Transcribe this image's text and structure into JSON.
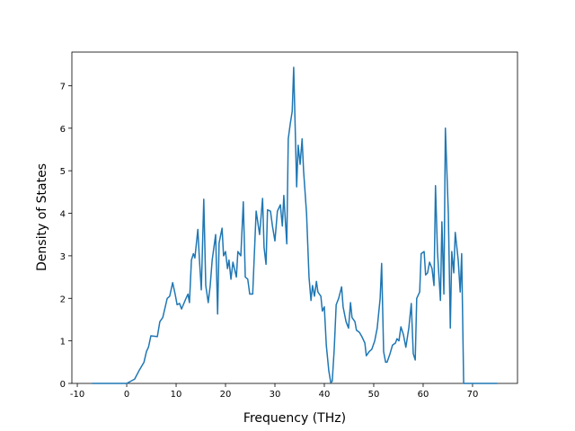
{
  "chart_data": {
    "type": "line",
    "x_label": "Frequency (THz)",
    "y_label": "Density of States",
    "color": "#1f77b4",
    "x": [
      -7,
      0,
      1.6,
      2.5,
      3.5,
      4,
      4.4,
      4.9,
      6.2,
      6.7,
      7.3,
      8.2,
      8.7,
      9.3,
      9.8,
      10.2,
      10.7,
      11.1,
      12,
      12.4,
      12.7,
      13.1,
      13.5,
      13.8,
      14.4,
      14.7,
      15.1,
      15.6,
      16,
      16.5,
      16.9,
      17.3,
      18,
      18.4,
      18.7,
      19.3,
      19.6,
      20,
      20.4,
      20.7,
      21.1,
      21.5,
      22.2,
      22.5,
      23.1,
      23.6,
      24,
      24.5,
      24.9,
      25.5,
      26.2,
      26.9,
      27.5,
      27.8,
      28.2,
      28.5,
      29.1,
      29.5,
      30,
      30.5,
      31.1,
      31.5,
      31.8,
      32.4,
      32.7,
      33.1,
      33.5,
      33.8,
      34.4,
      34.7,
      35.1,
      35.5,
      35.8,
      36.4,
      36.9,
      37.3,
      37.6,
      38,
      38.4,
      38.7,
      39.3,
      39.6,
      40,
      40.4,
      40.9,
      41.3,
      41.6,
      42,
      42.4,
      42.9,
      43.5,
      43.8,
      44.4,
      44.9,
      45.3,
      45.6,
      46.2,
      46.5,
      47.1,
      47.6,
      48.2,
      48.5,
      49.1,
      49.6,
      50.2,
      50.7,
      51.3,
      51.6,
      52,
      52.4,
      52.7,
      53.3,
      53.8,
      54.4,
      54.7,
      55.1,
      55.5,
      56,
      56.5,
      57.1,
      57.6,
      58,
      58.4,
      58.7,
      59.3,
      59.6,
      60.2,
      60.5,
      60.9,
      61.3,
      61.8,
      62.2,
      62.5,
      62.9,
      63.5,
      63.8,
      64.2,
      64.5,
      65.1,
      65.5,
      65.8,
      66.2,
      66.5,
      67.1,
      67.5,
      67.8,
      68.2,
      75
    ],
    "values": [
      0,
      0,
      0.1,
      0.3,
      0.5,
      0.75,
      0.85,
      1.12,
      1.1,
      1.45,
      1.55,
      2.0,
      2.05,
      2.37,
      2.1,
      1.85,
      1.88,
      1.75,
      2.0,
      2.1,
      1.9,
      2.9,
      3.05,
      2.95,
      3.62,
      2.95,
      2.2,
      4.33,
      2.3,
      1.9,
      2.3,
      2.9,
      3.5,
      1.63,
      3.3,
      3.65,
      3.0,
      3.1,
      2.7,
      2.9,
      2.45,
      2.85,
      2.5,
      3.1,
      3.0,
      4.27,
      2.5,
      2.45,
      2.1,
      2.1,
      4.05,
      3.5,
      4.35,
      3.2,
      2.8,
      4.08,
      4.05,
      3.7,
      3.35,
      4.05,
      4.2,
      3.7,
      4.42,
      3.28,
      5.75,
      6.1,
      6.4,
      7.43,
      4.62,
      5.6,
      5.15,
      5.75,
      5.0,
      4.0,
      2.5,
      1.95,
      2.3,
      2.05,
      2.4,
      2.15,
      2.05,
      1.7,
      1.8,
      0.9,
      0.3,
      0.02,
      0.05,
      0.8,
      1.85,
      2.0,
      2.27,
      1.8,
      1.45,
      1.3,
      1.9,
      1.55,
      1.45,
      1.25,
      1.2,
      1.1,
      0.95,
      0.65,
      0.75,
      0.8,
      1.0,
      1.3,
      2.0,
      2.82,
      0.75,
      0.5,
      0.5,
      0.7,
      0.9,
      0.95,
      1.05,
      1.0,
      1.33,
      1.15,
      0.85,
      1.3,
      1.88,
      0.7,
      0.55,
      2.0,
      2.15,
      3.05,
      3.1,
      2.55,
      2.6,
      2.85,
      2.7,
      2.3,
      4.65,
      3.1,
      1.95,
      3.8,
      2.1,
      6.0,
      4.0,
      1.3,
      3.1,
      2.6,
      3.55,
      2.9,
      2.15,
      3.05,
      0,
      0
    ],
    "xlim": [
      -11.1,
      79.1
    ],
    "ylim": [
      0,
      7.79
    ],
    "xticks": [
      -10,
      0,
      10,
      20,
      30,
      40,
      50,
      60,
      70
    ],
    "yticks": [
      0,
      1,
      2,
      3,
      4,
      5,
      6,
      7
    ]
  }
}
